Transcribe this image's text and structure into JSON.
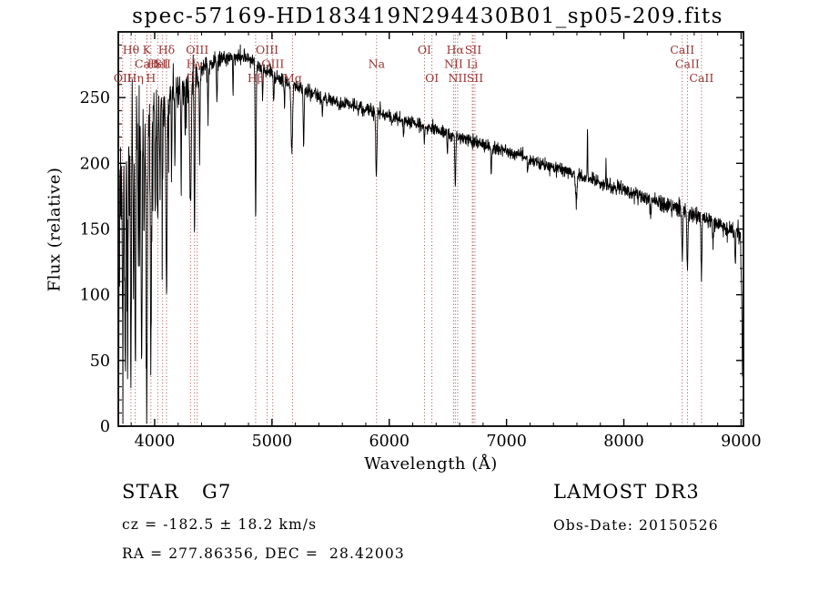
{
  "title": "spec-57169-HD183419N294430B01_sp05-209.fits",
  "chart_data": {
    "type": "line",
    "title": "spec-57169-HD183419N294430B01_sp05-209.fits",
    "xlabel": "Wavelength (Å)",
    "ylabel": "Flux (relative)",
    "xlim": [
      3690,
      9020
    ],
    "ylim": [
      0,
      300
    ],
    "xticks": [
      4000,
      5000,
      6000,
      7000,
      8000,
      9000
    ],
    "yticks": [
      0,
      50,
      100,
      150,
      200,
      250
    ],
    "grid": false,
    "line_color": "#000000",
    "marker_color": "#993333",
    "continuum": [
      [
        3690,
        120
      ],
      [
        3705,
        175
      ],
      [
        3730,
        195
      ],
      [
        3760,
        205
      ],
      [
        3800,
        215
      ],
      [
        3850,
        222
      ],
      [
        3900,
        228
      ],
      [
        3950,
        233
      ],
      [
        4000,
        238
      ],
      [
        4100,
        248
      ],
      [
        4200,
        257
      ],
      [
        4300,
        264
      ],
      [
        4400,
        271
      ],
      [
        4500,
        277
      ],
      [
        4600,
        281
      ],
      [
        4700,
        282
      ],
      [
        4800,
        280
      ],
      [
        4900,
        273
      ],
      [
        5000,
        268
      ],
      [
        5100,
        263
      ],
      [
        5200,
        259
      ],
      [
        5300,
        255
      ],
      [
        5400,
        251
      ],
      [
        5500,
        248
      ],
      [
        5600,
        246
      ],
      [
        5700,
        244
      ],
      [
        5800,
        241
      ],
      [
        5900,
        239
      ],
      [
        6000,
        236
      ],
      [
        6100,
        233
      ],
      [
        6200,
        231
      ],
      [
        6300,
        228
      ],
      [
        6400,
        226
      ],
      [
        6500,
        223
      ],
      [
        6600,
        220
      ],
      [
        6700,
        217
      ],
      [
        6800,
        214
      ],
      [
        6900,
        211
      ],
      [
        7000,
        209
      ],
      [
        7100,
        206
      ],
      [
        7200,
        203
      ],
      [
        7300,
        200
      ],
      [
        7400,
        197
      ],
      [
        7500,
        194
      ],
      [
        7600,
        191
      ],
      [
        7700,
        188
      ],
      [
        7800,
        185
      ],
      [
        7900,
        182
      ],
      [
        8000,
        179
      ],
      [
        8100,
        176
      ],
      [
        8200,
        173
      ],
      [
        8300,
        170
      ],
      [
        8400,
        167
      ],
      [
        8500,
        164
      ],
      [
        8600,
        161
      ],
      [
        8700,
        158
      ],
      [
        8800,
        154
      ],
      [
        8900,
        150
      ],
      [
        8960,
        147
      ],
      [
        8995,
        144
      ],
      [
        9006,
        90
      ],
      [
        9012,
        28
      ]
    ],
    "absorption_features": [
      [
        3727,
        110,
        4
      ],
      [
        3750,
        150,
        4
      ],
      [
        3770,
        130,
        4
      ],
      [
        3798,
        160,
        4
      ],
      [
        3820,
        110,
        3
      ],
      [
        3835,
        170,
        4
      ],
      [
        3860,
        90,
        3
      ],
      [
        3889,
        185,
        4
      ],
      [
        3910,
        80,
        3
      ],
      [
        3933,
        205,
        5
      ],
      [
        3968,
        195,
        5
      ],
      [
        4005,
        70,
        3
      ],
      [
        4026,
        85,
        3
      ],
      [
        4045,
        60,
        3
      ],
      [
        4068,
        70,
        3
      ],
      [
        4101,
        150,
        5
      ],
      [
        4144,
        60,
        3
      ],
      [
        4172,
        50,
        3
      ],
      [
        4226,
        75,
        3
      ],
      [
        4260,
        45,
        3
      ],
      [
        4305,
        95,
        7
      ],
      [
        4340,
        120,
        4
      ],
      [
        4383,
        65,
        3
      ],
      [
        4455,
        40,
        3
      ],
      [
        4531,
        35,
        3
      ],
      [
        4668,
        30,
        3
      ],
      [
        4861,
        115,
        4
      ],
      [
        4920,
        25,
        3
      ],
      [
        5015,
        20,
        3
      ],
      [
        5107,
        20,
        3
      ],
      [
        5170,
        55,
        6
      ],
      [
        5270,
        40,
        4
      ],
      [
        5430,
        15,
        3
      ],
      [
        5890,
        50,
        5
      ],
      [
        6122,
        15,
        3
      ],
      [
        6300,
        10,
        3
      ],
      [
        6495,
        15,
        3
      ],
      [
        6563,
        38,
        4
      ],
      [
        6870,
        18,
        4
      ],
      [
        7180,
        12,
        3
      ],
      [
        7594,
        22,
        6
      ],
      [
        7690,
        -42,
        2
      ],
      [
        7848,
        -20,
        2
      ],
      [
        8230,
        12,
        4
      ],
      [
        8498,
        38,
        4
      ],
      [
        8542,
        48,
        4
      ],
      [
        8662,
        45,
        4
      ],
      [
        8760,
        20,
        3
      ],
      [
        8950,
        28,
        3
      ]
    ],
    "noise_sigma": [
      [
        3690,
        28
      ],
      [
        3780,
        20
      ],
      [
        3900,
        14
      ],
      [
        4050,
        10
      ],
      [
        4250,
        7
      ],
      [
        4450,
        4.5
      ],
      [
        4700,
        3
      ],
      [
        5200,
        2.6
      ],
      [
        6000,
        2.4
      ],
      [
        7000,
        2.4
      ],
      [
        8000,
        2.8
      ],
      [
        8700,
        3.2
      ],
      [
        9020,
        4
      ]
    ],
    "forest_depth": [
      [
        3690,
        170
      ],
      [
        4000,
        110
      ],
      [
        4300,
        60
      ],
      [
        4500,
        30
      ]
    ],
    "spectral_lines": [
      {
        "label": "OII",
        "wavelength": 3727,
        "row": 3
      },
      {
        "label": "Hθ",
        "wavelength": 3798,
        "row": 1
      },
      {
        "label": "Hη",
        "wavelength": 3835,
        "row": 3
      },
      {
        "label": "K",
        "wavelength": 3933,
        "row": 1
      },
      {
        "label": "CaII",
        "wavelength": 3934,
        "row": 2
      },
      {
        "label": "H",
        "wavelength": 3968,
        "row": 3
      },
      {
        "label": "HeI",
        "wavelength": 4026,
        "row": 2
      },
      {
        "label": "SII",
        "wavelength": 4068,
        "row": 2
      },
      {
        "label": "Hδ",
        "wavelength": 4101,
        "row": 1
      },
      {
        "label": "G",
        "wavelength": 4305,
        "row": 3
      },
      {
        "label": "Hγ",
        "wavelength": 4340,
        "row": 2
      },
      {
        "label": "OIII",
        "wavelength": 4363,
        "row": 1
      },
      {
        "label": "Hβ",
        "wavelength": 4861,
        "row": 3
      },
      {
        "label": "OIII",
        "wavelength": 4959,
        "row": 1
      },
      {
        "label": "OIII",
        "wavelength": 5007,
        "row": 2
      },
      {
        "label": "Mg",
        "wavelength": 5175,
        "row": 3
      },
      {
        "label": "Na",
        "wavelength": 5892,
        "row": 2
      },
      {
        "label": "OI",
        "wavelength": 6300,
        "row": 1
      },
      {
        "label": "OI",
        "wavelength": 6364,
        "row": 3
      },
      {
        "label": "NII",
        "wavelength": 6548,
        "row": 2
      },
      {
        "label": "Hα",
        "wavelength": 6563,
        "row": 1
      },
      {
        "label": "NII",
        "wavelength": 6583,
        "row": 3
      },
      {
        "label": "Li",
        "wavelength": 6708,
        "row": 2
      },
      {
        "label": "SII",
        "wavelength": 6716,
        "row": 1
      },
      {
        "label": "SII",
        "wavelength": 6731,
        "row": 3
      },
      {
        "label": "CaII",
        "wavelength": 8498,
        "row": 1
      },
      {
        "label": "CaII",
        "wavelength": 8542,
        "row": 2
      },
      {
        "label": "CaII",
        "wavelength": 8662,
        "row": 3
      }
    ]
  },
  "footer": {
    "class_label": "STAR",
    "subclass": "G7",
    "survey": "LAMOST DR3",
    "velocity": "cz = -182.5 ± 18.2 km/s",
    "obs_date": "Obs-Date: 20150526",
    "coordinates": "RA = 277.86356, DEC =  28.42003"
  }
}
